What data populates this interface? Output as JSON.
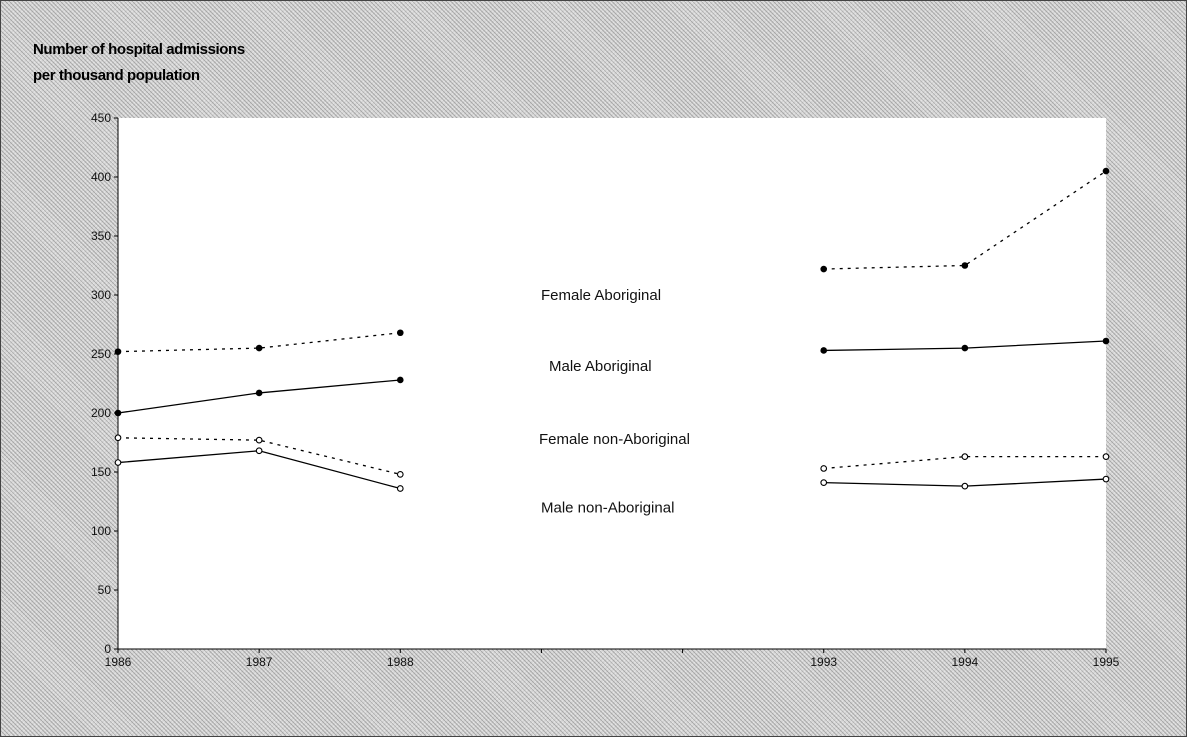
{
  "chart_data": {
    "type": "line",
    "title": "Number of hospital admissions",
    "subtitle": "per thousand population",
    "xlabel": "",
    "ylabel": "",
    "ylim": [
      0,
      450
    ],
    "yticks": [
      0,
      50,
      100,
      150,
      200,
      250,
      300,
      350,
      400,
      450
    ],
    "categories": [
      "1986",
      "1987",
      "1988",
      "",
      "",
      "1993",
      "1994",
      "1995"
    ],
    "grid": false,
    "colors": {
      "line": "#000000",
      "plot_background": "#ffffff",
      "outer_background": "#d6d6d6"
    },
    "series": [
      {
        "name": "Female Aboriginal",
        "style": "dotted",
        "marker": "filled",
        "values": [
          252,
          255,
          268,
          null,
          null,
          322,
          325,
          405
        ]
      },
      {
        "name": "Male Aboriginal",
        "style": "solid",
        "marker": "filled",
        "values": [
          200,
          217,
          228,
          null,
          null,
          253,
          255,
          261
        ]
      },
      {
        "name": "Female non-Aboriginal",
        "style": "dotted",
        "marker": "open",
        "values": [
          179,
          177,
          148,
          null,
          null,
          153,
          163,
          163
        ]
      },
      {
        "name": "Male non-Aboriginal",
        "style": "solid",
        "marker": "open",
        "values": [
          158,
          168,
          136,
          null,
          null,
          141,
          138,
          144
        ]
      }
    ]
  }
}
